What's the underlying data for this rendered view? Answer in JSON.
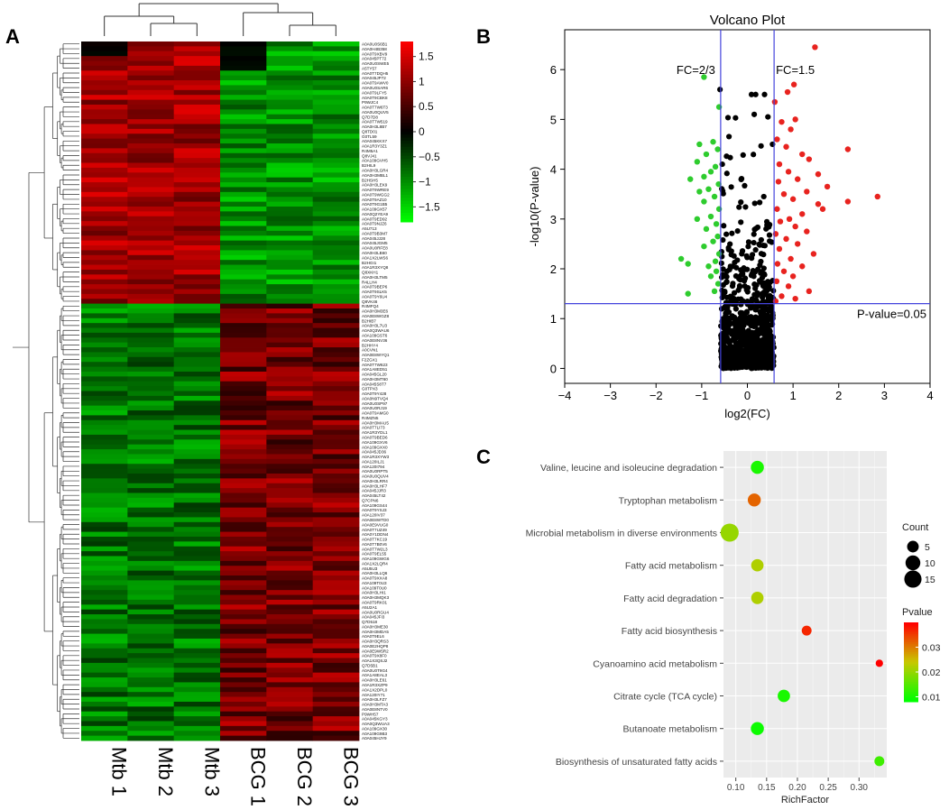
{
  "panels": {
    "a": "A",
    "b": "B",
    "c": "C"
  },
  "chart_data": [
    {
      "type": "heatmap",
      "title": "",
      "columns": [
        "Mtb 1",
        "Mtb 2",
        "Mtb 3",
        "BCG 1",
        "BCG 2",
        "BCG 3"
      ],
      "color_scale": {
        "ticks": [
          "1.5",
          "1",
          "0.5",
          "0",
          "−0.5",
          "−1",
          "−1.5"
        ],
        "min": -1.8,
        "max": 1.8,
        "low_color": "#00ff00",
        "mid_color": "#000000",
        "high_color": "#ff0000"
      },
      "row_labels": [
        "A0A0U0S6B1",
        "A0A0H4B358",
        "A0A0T9XBV9",
        "A0A045PT72",
        "A0A0U0SWE5",
        "A5TY57",
        "A0A0T7DQH5",
        "A0A045JP72",
        "A0A0T9AWV0",
        "A0A0U0SAR6",
        "A0A0T9LFY5",
        "A0A0T9CBK8",
        "P9WJC4",
        "A0A0T7W6T3",
        "A0A0U0QUV5",
        "Q7D7D8",
        "A0A0T7W519",
        "A0A0H3L8B7",
        "Q8TD01",
        "G0TL59",
        "A0A045KKX7",
        "A0A1R3Y3Z1",
        "R4M5A1",
        "Q8VJ41",
        "A0A109GVH5",
        "B2HIL9",
        "A0A0H3LGR4",
        "A0A0H3MBL1",
        "B2HSH5",
        "A0A0H3LEK9",
        "A0A0T9WRE9",
        "A0A0T9WGG2",
        "A0A0T9AZ10",
        "A0A0T9G1B5",
        "A0A109GX57",
        "A0A0Q2YEA9",
        "A0A0T9ED92",
        "A0A0T9NJZ6",
        "A5U713",
        "A0A0T9B3M7",
        "A0A045JJ28",
        "A0A045JGM5",
        "A0A0U0RFE8",
        "A0A0H3LB60",
        "A0A1X2LWS6",
        "B2HGI1",
        "A0A1R3XYQ8",
        "Q8XKH1",
        "A0A0H3LTM5",
        "R4LLH4",
        "A0A0T9BEP6",
        "A0A0T9SLK5",
        "A0A0T9Y6U4",
        "Q8VK46",
        "R4MFQ4",
        "A0A0H3M3E6",
        "A0A0E8WGZ8",
        "B2HIB7",
        "A0A0H3L7U3",
        "A0A0Q3WAU6",
        "A0A109GST6",
        "A0A0E8NV36",
        "B2HHY4",
        "A0CVN1",
        "A0A0E8WYQ1",
        "F2ZGX1",
        "A0A0T7W623",
        "A0A1A8ED51",
        "A0A045GL20",
        "A0A0H3MT60",
        "A0A045S8T7",
        "G0TPX3",
        "A0A0T9Y428",
        "A0A0N9TVQ4",
        "A0A0U0SP97",
        "A0A0U0RJ19",
        "A0A0T9AMG0",
        "R4MZN5",
        "A0A0H3MAU5",
        "A0A0T7LI73",
        "A0A1R3YDL1",
        "A0A0T9BED6",
        "A0A109GXV6",
        "A0A109GXX0",
        "A0A045JD36",
        "A0A1R3XYW3",
        "A0A120ILJ1",
        "A0A120I794",
        "A0A0U0RPT5",
        "A0A0U0QUV4",
        "A0A0H3LRR4",
        "A0A0H3LHF7",
        "A0A045JJR3",
        "A0A045LT42",
        "Q7CPN6",
        "A0A109GS44",
        "A0A0T9YSJ3",
        "A0A120IV37",
        "A0A0E8WTD0",
        "A0A0E9VUG0",
        "A0A0T7UZ49",
        "A0A0Y1DDN4",
        "A0A0T7KC19",
        "A0A0T7B0V6",
        "A0A0T7W2L3",
        "A0A0T9EL55",
        "A0A109GWG6",
        "A0A1X2LQR4",
        "A5U5U3",
        "A0A0H3LLQ6",
        "A0A0T9XXA8",
        "A0A109T0U3",
        "A0A109T0U0",
        "A0A0H3LHI1",
        "A0A0H3MQK3",
        "A0A0T9RK01",
        "A5U2A1",
        "A0A0U0RGU4",
        "A0A045JFI3",
        "Q7D518",
        "A0A0H3ME30",
        "A0A0H3MDA5",
        "A0A0T9EL6",
        "A0A0H3QRS3",
        "A0A0E2HQP8",
        "A0A0E9W5R2",
        "A0A0T9X8F0",
        "A0A1X3QSJ2",
        "Q7D5B1",
        "A0A0U0T9G4",
        "A0A1A8EAL3",
        "A0A0H3LE61",
        "A0A1R3XZP9",
        "A0A1X2DPL0",
        "A0A120IY71",
        "A0A0H3LFZ7",
        "A0A0H3MTA3",
        "A0A0E8NTV0",
        "P9WH57",
        "A0A045KGY3",
        "A0A0Q3WUA3",
        "A0A109GX30",
        "A0A109G9B3",
        "A0A045HJY9"
      ]
    },
    {
      "type": "scatter",
      "title": "Volcano Plot",
      "xlabel": "log2(FC)",
      "ylabel": "-log10(P-value)",
      "xlim": [
        -4,
        4
      ],
      "ylim": [
        -0.3,
        6.8
      ],
      "xticks": [
        -4,
        -3,
        -2,
        -1,
        0,
        1,
        2,
        3,
        4
      ],
      "yticks": [
        0,
        1,
        2,
        3,
        4,
        5,
        6
      ],
      "thresholds": {
        "fc_low": -0.585,
        "fc_high": 0.585,
        "p": 1.3
      },
      "annotations": [
        "FC=2/3",
        "FC=1.5",
        "P-value=0.05"
      ],
      "colors": {
        "up": "#e8231f",
        "down": "#2ecc2e",
        "ns": "#000000",
        "line": "#4444dd"
      },
      "series": [
        {
          "name": "up",
          "points": [
            [
              1.48,
              6.45
            ],
            [
              1.02,
              5.7
            ],
            [
              0.88,
              5.55
            ],
            [
              0.6,
              5.35
            ],
            [
              1.05,
              5.0
            ],
            [
              0.75,
              4.95
            ],
            [
              0.95,
              4.8
            ],
            [
              0.65,
              4.6
            ],
            [
              0.85,
              4.45
            ],
            [
              1.2,
              4.3
            ],
            [
              2.2,
              4.4
            ],
            [
              1.35,
              4.2
            ],
            [
              0.7,
              4.1
            ],
            [
              1.55,
              3.9
            ],
            [
              0.9,
              3.95
            ],
            [
              1.1,
              3.8
            ],
            [
              0.68,
              3.75
            ],
            [
              1.75,
              3.65
            ],
            [
              1.3,
              3.55
            ],
            [
              2.85,
              3.45
            ],
            [
              0.8,
              3.5
            ],
            [
              1.0,
              3.4
            ],
            [
              2.2,
              3.35
            ],
            [
              1.55,
              3.3
            ],
            [
              0.65,
              3.2
            ],
            [
              1.2,
              3.1
            ],
            [
              1.65,
              3.2
            ],
            [
              0.92,
              3.0
            ],
            [
              0.72,
              2.95
            ],
            [
              1.05,
              2.85
            ],
            [
              1.3,
              2.75
            ],
            [
              0.62,
              2.7
            ],
            [
              0.85,
              2.6
            ],
            [
              1.1,
              2.5
            ],
            [
              0.7,
              2.4
            ],
            [
              1.45,
              2.3
            ],
            [
              0.95,
              2.2
            ],
            [
              0.66,
              2.1
            ],
            [
              1.2,
              2.05
            ],
            [
              0.8,
              1.95
            ],
            [
              1.0,
              1.85
            ],
            [
              0.64,
              1.75
            ],
            [
              0.9,
              1.65
            ],
            [
              1.35,
              1.55
            ],
            [
              0.75,
              1.45
            ],
            [
              1.05,
              1.4
            ],
            [
              0.62,
              1.35
            ]
          ]
        },
        {
          "name": "down",
          "points": [
            [
              -0.95,
              5.85
            ],
            [
              -0.62,
              5.25
            ],
            [
              -0.75,
              4.55
            ],
            [
              -1.05,
              4.5
            ],
            [
              -0.65,
              4.4
            ],
            [
              -0.9,
              4.3
            ],
            [
              -1.1,
              4.15
            ],
            [
              -0.7,
              4.05
            ],
            [
              -0.8,
              3.95
            ],
            [
              -0.95,
              3.85
            ],
            [
              -1.25,
              3.8
            ],
            [
              -0.63,
              3.7
            ],
            [
              -0.85,
              3.6
            ],
            [
              -1.05,
              3.55
            ],
            [
              -0.72,
              3.45
            ],
            [
              -0.95,
              3.35
            ],
            [
              -0.62,
              3.2
            ],
            [
              -0.8,
              3.05
            ],
            [
              -1.1,
              3.0
            ],
            [
              -0.68,
              2.9
            ],
            [
              -0.9,
              2.8
            ],
            [
              -0.65,
              2.65
            ],
            [
              -0.75,
              2.55
            ],
            [
              -0.95,
              2.45
            ],
            [
              -0.62,
              2.3
            ],
            [
              -0.7,
              2.15
            ],
            [
              -0.85,
              2.05
            ],
            [
              -1.45,
              2.2
            ],
            [
              -1.3,
              2.1
            ],
            [
              -0.68,
              1.95
            ],
            [
              -0.8,
              1.85
            ],
            [
              -0.64,
              1.7
            ],
            [
              -1.3,
              1.5
            ],
            [
              -0.72,
              1.55
            ]
          ]
        }
      ]
    },
    {
      "type": "scatter",
      "subtype": "enrichment-dot",
      "title": "",
      "xlabel": "RichFactor",
      "xlim": [
        0.08,
        0.345
      ],
      "xticks": [
        "0.10",
        "0.15",
        "0.20",
        "0.25",
        "0.30"
      ],
      "categories": [
        "Valine, leucine and isoleucine degradation",
        "Tryptophan metabolism",
        "Microbial metabolism in diverse environments",
        "Fatty acid metabolism",
        "Fatty acid degradation",
        "Fatty acid biosynthesis",
        "Cyanoamino acid metabolism",
        "Citrate cycle (TCA cycle)",
        "Butanoate metabolism",
        "Biosynthesis of unsaturated fatty acids"
      ],
      "rich_factor": [
        0.135,
        0.13,
        0.09,
        0.135,
        0.135,
        0.215,
        0.333,
        0.178,
        0.135,
        0.333
      ],
      "count": [
        7,
        7,
        17,
        6,
        6,
        3,
        1,
        6,
        7,
        3
      ],
      "pvalue": [
        0.01,
        0.032,
        0.02,
        0.022,
        0.022,
        0.037,
        0.04,
        0.01,
        0.009,
        0.013
      ],
      "legend_count": {
        "title": "Count",
        "values": [
          "5",
          "10",
          "15"
        ]
      },
      "legend_p": {
        "title": "Pvalue",
        "ticks": [
          "0.03",
          "0.02",
          "0.01"
        ],
        "low_color": "#00ff00",
        "mid_color": "#c8c800",
        "high_color": "#ff0000"
      }
    }
  ]
}
